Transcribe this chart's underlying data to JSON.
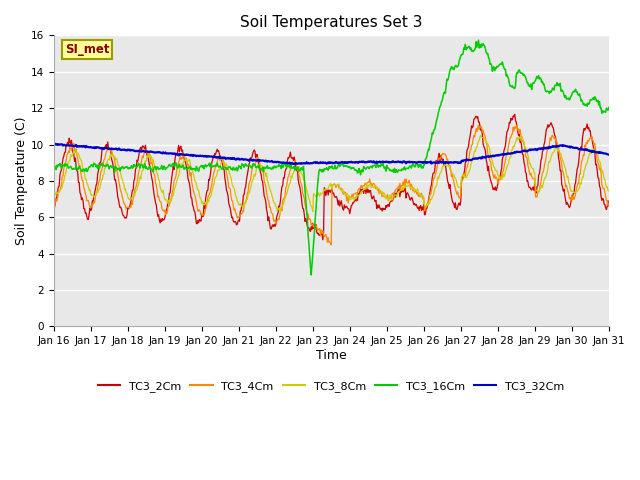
{
  "title": "Soil Temperatures Set 3",
  "xlabel": "Time",
  "ylabel": "Soil Temperature (C)",
  "xlim": [
    0,
    360
  ],
  "ylim": [
    0,
    16
  ],
  "yticks": [
    0,
    2,
    4,
    6,
    8,
    10,
    12,
    14,
    16
  ],
  "xtick_labels": [
    "Jan 16",
    "Jan 17",
    "Jan 18",
    "Jan 19",
    "Jan 20",
    "Jan 21",
    "Jan 22",
    "Jan 23",
    "Jan 24",
    "Jan 25",
    "Jan 26",
    "Jan 27",
    "Jan 28",
    "Jan 29",
    "Jan 30",
    "Jan 31"
  ],
  "xtick_positions": [
    0,
    24,
    48,
    72,
    96,
    120,
    144,
    168,
    192,
    216,
    240,
    264,
    288,
    312,
    336,
    360
  ],
  "series_colors": [
    "#cc0000",
    "#ff8800",
    "#cccc00",
    "#00cc00",
    "#0000cc"
  ],
  "series_labels": [
    "TC3_2Cm",
    "TC3_4Cm",
    "TC3_8Cm",
    "TC3_16Cm",
    "TC3_32Cm"
  ],
  "background_color": "#e8e8e8",
  "grid_color": "#ffffff",
  "annotation_text": "SI_met",
  "annotation_bg": "#ffff99",
  "annotation_border": "#999900",
  "title_fontsize": 11,
  "axis_fontsize": 9,
  "tick_fontsize": 7.5
}
